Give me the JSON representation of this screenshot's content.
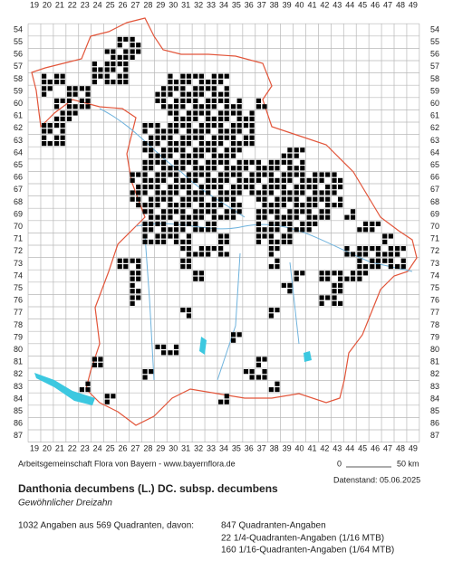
{
  "grid": {
    "columns": [
      19,
      20,
      21,
      22,
      23,
      24,
      25,
      26,
      27,
      28,
      29,
      30,
      31,
      32,
      33,
      34,
      35,
      36,
      37,
      38,
      39,
      40,
      41,
      42,
      43,
      44,
      45,
      46,
      47,
      48,
      49
    ],
    "rows": [
      54,
      55,
      56,
      57,
      58,
      59,
      60,
      61,
      62,
      63,
      64,
      65,
      66,
      67,
      68,
      69,
      70,
      71,
      72,
      73,
      74,
      75,
      76,
      77,
      78,
      79,
      80,
      81,
      82,
      83,
      84,
      85,
      86,
      87
    ]
  },
  "credit": "Arbeitsgemeinschaft Flora von Bayern - www.bayernflora.de",
  "scale": {
    "start": 0,
    "end": "50 km"
  },
  "date": "Datenstand: 05.06.2025",
  "title": "Danthonia decumbens (L.) DC. subsp. decumbens",
  "subtitle": "Gewöhnlicher Dreizahn",
  "summary": "1032 Angaben aus 569 Quadranten, davon:",
  "legend": [
    "847 Quadranten-Angaben",
    "22 1/4-Quadranten-Angaben (1/16 MTB)",
    "160 1/16-Quadranten-Angaben (1/64 MTB)"
  ]
}
